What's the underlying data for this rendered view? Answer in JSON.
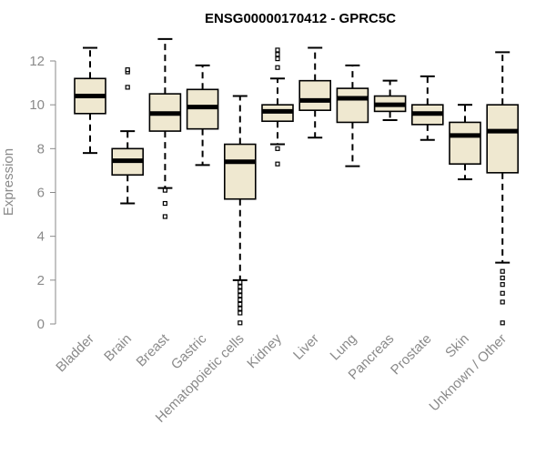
{
  "chart_data": {
    "type": "box",
    "title": "ENSG00000170412 - GPRC5C",
    "xlabel": "",
    "ylabel": "Expression",
    "ylim": [
      0,
      12
    ],
    "yticks": [
      0,
      2,
      4,
      6,
      8,
      10,
      12
    ],
    "grid": false,
    "box_color": "#efe8d0",
    "line_color": "#000000",
    "categories": [
      "Bladder",
      "Brain",
      "Breast",
      "Gastric",
      "Hematopoietic cells",
      "Kidney",
      "Liver",
      "Lung",
      "Pancreas",
      "Prostate",
      "Skin",
      "Unknown / Other"
    ],
    "boxes": [
      {
        "whislo": 7.8,
        "q1": 9.6,
        "med": 10.4,
        "q3": 11.2,
        "whishi": 12.6,
        "fliers": []
      },
      {
        "whislo": 5.5,
        "q1": 6.8,
        "med": 7.45,
        "q3": 8.0,
        "whishi": 8.8,
        "fliers": [
          10.8,
          11.5,
          11.6
        ]
      },
      {
        "whislo": 6.2,
        "q1": 8.8,
        "med": 9.6,
        "q3": 10.5,
        "whishi": 13.0,
        "fliers": [
          6.1,
          5.5,
          4.9
        ]
      },
      {
        "whislo": 7.25,
        "q1": 8.9,
        "med": 9.9,
        "q3": 10.7,
        "whishi": 11.8,
        "fliers": []
      },
      {
        "whislo": 2.0,
        "q1": 5.7,
        "med": 7.4,
        "q3": 8.2,
        "whishi": 10.4,
        "fliers": [
          1.9,
          1.7,
          1.5,
          1.3,
          1.1,
          0.9,
          0.7,
          0.5,
          0.05
        ]
      },
      {
        "whislo": 8.2,
        "q1": 9.25,
        "med": 9.7,
        "q3": 10.0,
        "whishi": 11.2,
        "fliers": [
          7.3,
          8.0,
          11.7,
          12.1,
          12.3,
          12.5
        ]
      },
      {
        "whislo": 8.5,
        "q1": 9.75,
        "med": 10.2,
        "q3": 11.1,
        "whishi": 12.6,
        "fliers": []
      },
      {
        "whislo": 7.2,
        "q1": 9.2,
        "med": 10.3,
        "q3": 10.75,
        "whishi": 11.8,
        "fliers": []
      },
      {
        "whislo": 9.3,
        "q1": 9.7,
        "med": 10.0,
        "q3": 10.4,
        "whishi": 11.1,
        "fliers": []
      },
      {
        "whislo": 8.4,
        "q1": 9.1,
        "med": 9.6,
        "q3": 10.0,
        "whishi": 11.3,
        "fliers": []
      },
      {
        "whislo": 6.6,
        "q1": 7.3,
        "med": 8.6,
        "q3": 9.2,
        "whishi": 10.0,
        "fliers": []
      },
      {
        "whislo": 2.8,
        "q1": 6.9,
        "med": 8.8,
        "q3": 10.0,
        "whishi": 12.4,
        "fliers": [
          2.4,
          2.1,
          1.8,
          1.4,
          1.0,
          0.05
        ]
      }
    ]
  }
}
